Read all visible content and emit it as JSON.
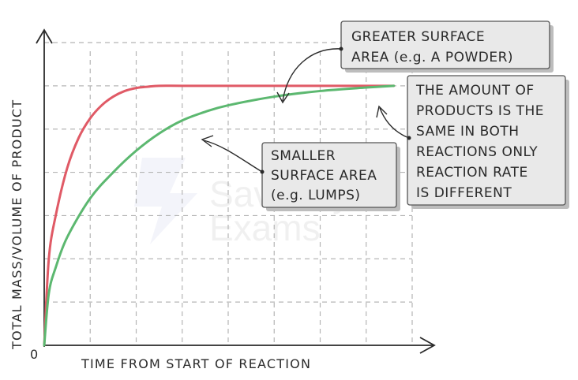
{
  "chart_data": {
    "type": "line",
    "xlabel": "TIME FROM START OF REACTION",
    "ylabel": "TOTAL MASS/VOLUME OF PRODUCT",
    "origin_label": "0",
    "xlim": [
      0,
      8
    ],
    "ylim": [
      0,
      7
    ],
    "grid": true,
    "series": [
      {
        "name": "GREATER SURFACE AREA (e.g. A POWDER)",
        "color": "#e05a66",
        "x": [
          0,
          0.1,
          0.25,
          0.5,
          0.75,
          1,
          1.25,
          1.5,
          1.75,
          2,
          2.25,
          2.5,
          3,
          4,
          5,
          6,
          7.6
        ],
        "y": [
          0,
          2.0,
          3.0,
          4.1,
          4.8,
          5.25,
          5.55,
          5.75,
          5.88,
          5.95,
          5.98,
          6.0,
          6.0,
          6.0,
          6.0,
          6.0,
          6.0
        ]
      },
      {
        "name": "SMALLER SURFACE AREA (e.g. LUMPS)",
        "color": "#5cb870",
        "x": [
          0,
          0.1,
          0.25,
          0.5,
          1,
          1.5,
          2,
          2.5,
          3,
          3.5,
          4,
          5,
          6,
          7,
          7.6
        ],
        "y": [
          0,
          1.2,
          1.8,
          2.5,
          3.4,
          4.0,
          4.5,
          4.9,
          5.2,
          5.4,
          5.55,
          5.75,
          5.88,
          5.96,
          6.0
        ]
      }
    ]
  },
  "annotations": {
    "greater": [
      "GREATER SURFACE",
      "AREA  (e.g. A POWDER)"
    ],
    "smaller": [
      "SMALLER",
      "SURFACE AREA",
      "(e.g. LUMPS)"
    ],
    "amount": [
      "THE AMOUNT OF",
      "PRODUCTS IS THE",
      "SAME IN BOTH",
      "REACTIONS ONLY",
      "REACTION RATE",
      "IS DIFFERENT"
    ]
  },
  "watermark": "Save My Exams",
  "colors": {
    "red": "#e05a66",
    "green": "#5cb870",
    "grid": "#b5b5b5"
  }
}
